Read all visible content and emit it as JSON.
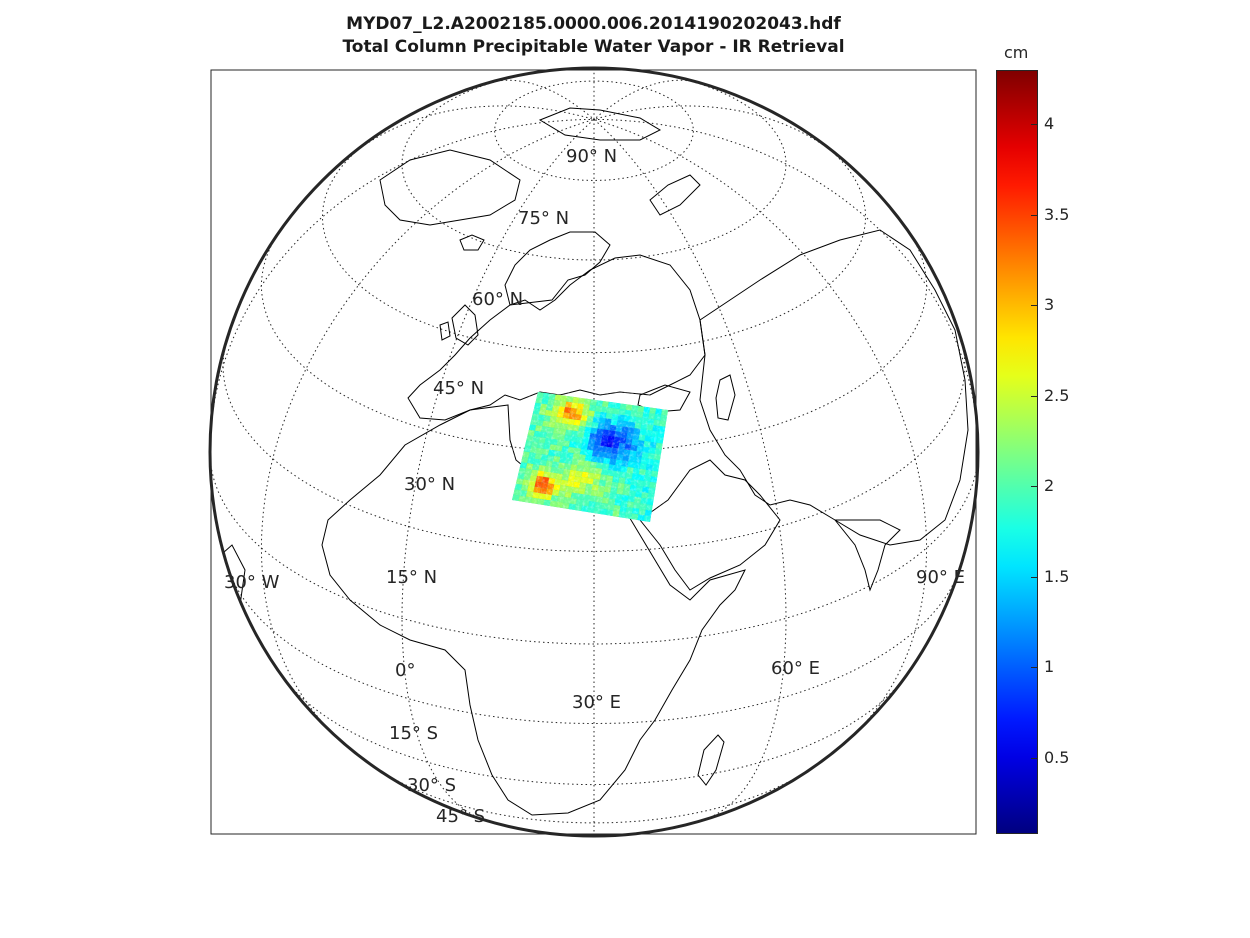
{
  "title": {
    "line1": "MYD07_L2.A2002185.0000.006.2014190202043.hdf",
    "line2": "Total Column Precipitable Water Vapor - IR Retrieval"
  },
  "colorbar": {
    "unit": "cm",
    "colormap": "jet",
    "range": [
      0.08,
      4.3
    ],
    "ticks": [
      "0.5",
      "1",
      "1.5",
      "2",
      "2.5",
      "3",
      "3.5",
      "4"
    ]
  },
  "map": {
    "projection": "orthographic",
    "center": {
      "lat": 30,
      "lon": 30
    },
    "graticule": "dotted",
    "grid_labels": {
      "n90": "90° N",
      "n75": "75° N",
      "n60": "60° N",
      "n45": "45° N",
      "n30": "30° N",
      "n15": "15° N",
      "eq": "0°",
      "s15": "15° S",
      "s30": "30° S",
      "s45": "45° S",
      "w30": "30° W",
      "e30": "30° E",
      "e60": "60° E",
      "e90": "90° E"
    },
    "data_region": "Eastern Mediterranean swath",
    "colors": {
      "frame": "#262626",
      "coast": "#000000",
      "grid": "#262626"
    }
  }
}
